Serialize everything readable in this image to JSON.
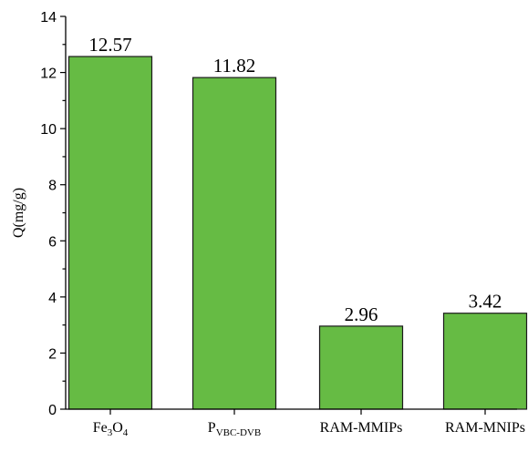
{
  "chart_data": {
    "type": "bar",
    "ylabel": "Q(mg/g)",
    "ylim": [
      0,
      14
    ],
    "yticks": [
      0,
      2,
      4,
      6,
      8,
      10,
      12,
      14
    ],
    "grid": false,
    "bar_color": "#66bb44",
    "categories": [
      {
        "base": "Fe",
        "sub1": "3",
        "mid": "O",
        "sub2": "4"
      },
      {
        "base": "P",
        "sub1": "VBC-DVB",
        "mid": "",
        "sub2": ""
      },
      {
        "base": "RAM-MMIPs",
        "sub1": "",
        "mid": "",
        "sub2": ""
      },
      {
        "base": "RAM-MNIPs",
        "sub1": "",
        "mid": "",
        "sub2": ""
      }
    ],
    "values": [
      12.57,
      11.82,
      2.96,
      3.42
    ],
    "value_labels": [
      "12.57",
      "11.82",
      "2.96",
      "3.42"
    ]
  }
}
